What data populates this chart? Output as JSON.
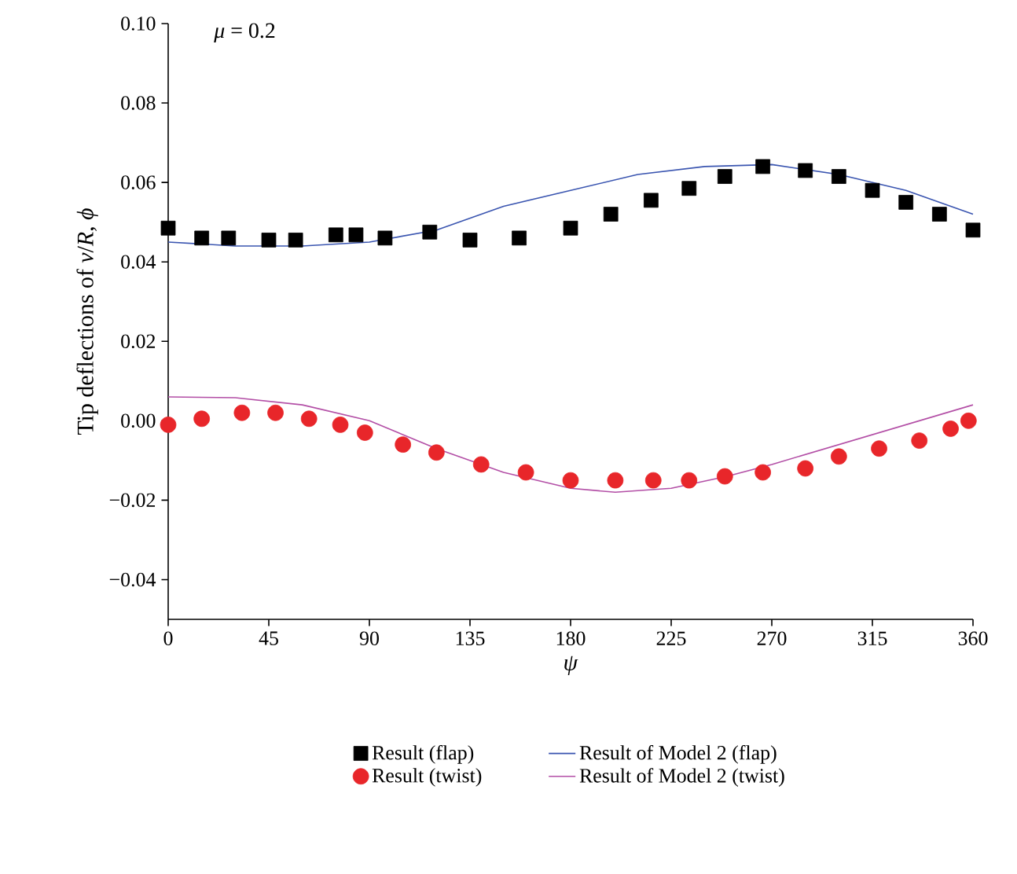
{
  "chart_data": {
    "type": "scatter",
    "xlabel": "*ψ*",
    "ylabel": "Tip deflections of *v*/*R*, *ϕ*",
    "annotations": [
      "*μ* = 0.2"
    ],
    "xlim": [
      0,
      360
    ],
    "xticks": [
      0,
      45,
      90,
      135,
      180,
      225,
      270,
      315,
      360
    ],
    "ylim": [
      -0.05,
      0.1
    ],
    "yticks": [
      {
        "value": -0.04,
        "label": "−0.04"
      },
      {
        "value": -0.02,
        "label": "−0.02"
      },
      {
        "value": 0,
        "label": "0.00"
      },
      {
        "value": 0.02,
        "label": "0.02"
      },
      {
        "value": 0.04,
        "label": "0.04"
      },
      {
        "value": 0.06,
        "label": "0.06"
      },
      {
        "value": 0.08,
        "label": "0.08"
      },
      {
        "value": 0.1,
        "label": "0.10"
      }
    ],
    "grid": false,
    "legend": "bottom",
    "series": [
      {
        "name": "Result (flap)",
        "marker": "square",
        "color": "#000000",
        "x": [
          0,
          15,
          27,
          45,
          57,
          75,
          84,
          97,
          117,
          135,
          157,
          180,
          198,
          216,
          233,
          249,
          266,
          285,
          300,
          315,
          330,
          345,
          360
        ],
        "values": [
          0.0485,
          0.046,
          0.046,
          0.0455,
          0.0455,
          0.0468,
          0.0468,
          0.046,
          0.0475,
          0.0455,
          0.046,
          0.0485,
          0.052,
          0.0555,
          0.0585,
          0.0615,
          0.064,
          0.063,
          0.0615,
          0.058,
          0.055,
          0.052,
          0.048
        ]
      },
      {
        "name": "Result of Model 2 (flap)",
        "type": "line",
        "marker": "none",
        "color": "#3a55b0",
        "x": [
          0,
          30,
          60,
          90,
          120,
          150,
          180,
          210,
          240,
          270,
          300,
          330,
          360
        ],
        "values": [
          0.045,
          0.044,
          0.044,
          0.045,
          0.048,
          0.054,
          0.058,
          0.062,
          0.064,
          0.0645,
          0.062,
          0.058,
          0.052
        ]
      },
      {
        "name": "Result (twist)",
        "marker": "circle",
        "color": "#e8262a",
        "x": [
          0,
          15,
          33,
          48,
          63,
          77,
          88,
          105,
          120,
          140,
          160,
          180,
          200,
          217,
          233,
          249,
          266,
          285,
          300,
          318,
          336,
          350,
          358
        ],
        "values": [
          -0.001,
          0.0005,
          0.002,
          0.002,
          0.0005,
          -0.001,
          -0.003,
          -0.006,
          -0.008,
          -0.011,
          -0.013,
          -0.015,
          -0.015,
          -0.015,
          -0.015,
          -0.014,
          -0.013,
          -0.012,
          -0.009,
          -0.007,
          -0.005,
          -0.002,
          0
        ]
      },
      {
        "name": "Result of Model 2 (twist)",
        "type": "line",
        "marker": "none",
        "color": "#b34fa6",
        "x": [
          0,
          30,
          60,
          90,
          120,
          150,
          180,
          200,
          225,
          250,
          270,
          300,
          330,
          360
        ],
        "values": [
          0.006,
          0.0058,
          0.004,
          0.0,
          -0.007,
          -0.013,
          -0.017,
          -0.018,
          -0.017,
          -0.014,
          -0.011,
          -0.006,
          -0.001,
          0.004
        ]
      }
    ]
  }
}
